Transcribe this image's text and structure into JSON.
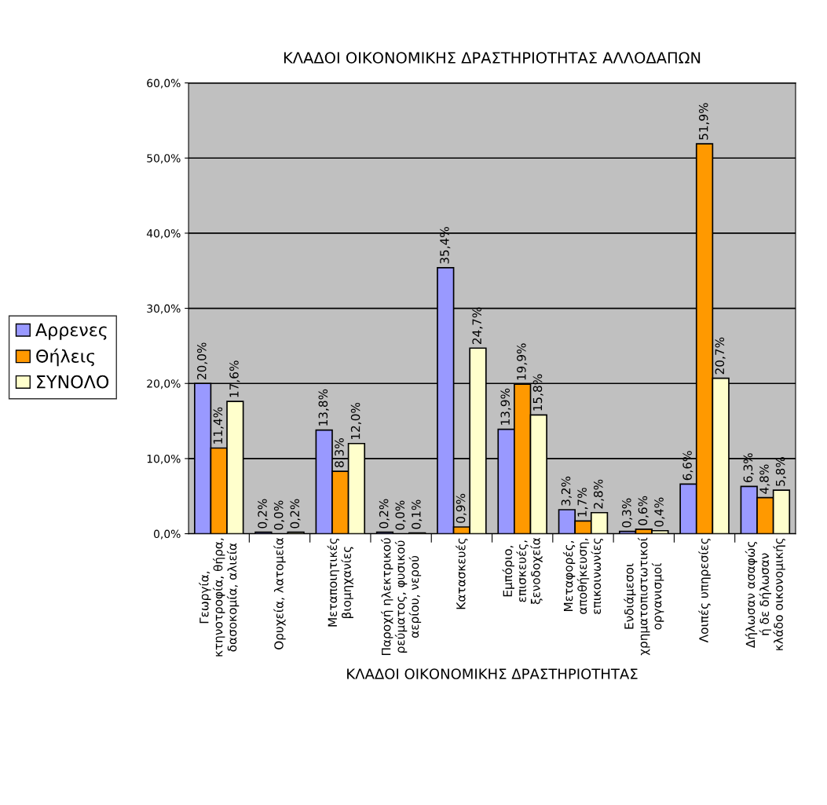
{
  "chart_data": {
    "type": "bar",
    "title": "ΚΛΑΔΟΙ ΟΙΚΟΝΟΜΙΚΗΣ ΔΡΑΣΤΗΡΙΟΤΗΤΑΣ ΑΛΛΟΔΑΠΩΝ",
    "xlabel": "ΚΛΑΔΟΙ ΟΙΚΟΝΟΜΙΚΗΣ ΔΡΑΣΤΗΡΙΟΤΗΤΑΣ",
    "categories": [
      "Γεωργία,\nκτηνοτροφία, θήρα,\nδασοκομία, αλιεία",
      "Ορυχεία, λατομεία",
      "Μεταποιητικές\nβιομηχανίες",
      "Παροχή ηλεκτρικού\nρεύματος, φυσικού\nαερίου, νερού",
      "Κατασκευές",
      "Εμπόριο,\nεπισκευές,\nξενοδοχεία",
      "Μεταφορές,\nαποθήκευση,\nεπικοινωνίες",
      "Ενδιάμεσοι\nχρηματοπιστωτικοί\nοργανισμοί",
      "Λοιπές υπηρεσίες",
      "Δήλωσαν ασαφώς\nή δε δήλωσαν\nκλάδο οικονομικής"
    ],
    "series": [
      {
        "name": "Αρρενες",
        "color": "#9999ff",
        "values": [
          20.0,
          0.2,
          13.8,
          0.2,
          35.4,
          13.9,
          3.2,
          0.3,
          6.6,
          6.3
        ],
        "value_labels": [
          "20,0%",
          "0,2%",
          "13,8%",
          "0,2%",
          "35,4%",
          "13,9%",
          "3,2%",
          "0,3%",
          "6,6%",
          "6,3%"
        ]
      },
      {
        "name": "Θήλεις",
        "color": "#ff9900",
        "values": [
          11.4,
          0.0,
          8.3,
          0.0,
          0.9,
          19.9,
          1.7,
          0.6,
          51.9,
          4.8
        ],
        "value_labels": [
          "11,4%",
          "0,0%",
          "8,3%",
          "0,0%",
          "0,9%",
          "19,9%",
          "1,7%",
          "0,6%",
          "51,9%",
          "4,8%"
        ]
      },
      {
        "name": "ΣΥΝΟΛΟ",
        "color": "#ffffcc",
        "values": [
          17.6,
          0.2,
          12.0,
          0.1,
          24.7,
          15.8,
          2.8,
          0.4,
          20.7,
          5.8
        ],
        "value_labels": [
          "17,6%",
          "0,2%",
          "12,0%",
          "0,1%",
          "24,7%",
          "15,8%",
          "2,8%",
          "0,4%",
          "20,7%",
          "5,8%"
        ]
      }
    ],
    "ylim": [
      0,
      60
    ],
    "yticks": [
      {
        "value": 0,
        "label": "0,0%"
      },
      {
        "value": 10,
        "label": "10,0%"
      },
      {
        "value": 20,
        "label": "20,0%"
      },
      {
        "value": 30,
        "label": "30,0%"
      },
      {
        "value": 40,
        "label": "40,0%"
      },
      {
        "value": 50,
        "label": "50,0%"
      },
      {
        "value": 60,
        "label": "60,0%"
      }
    ],
    "grid": "y",
    "legend": "left"
  }
}
